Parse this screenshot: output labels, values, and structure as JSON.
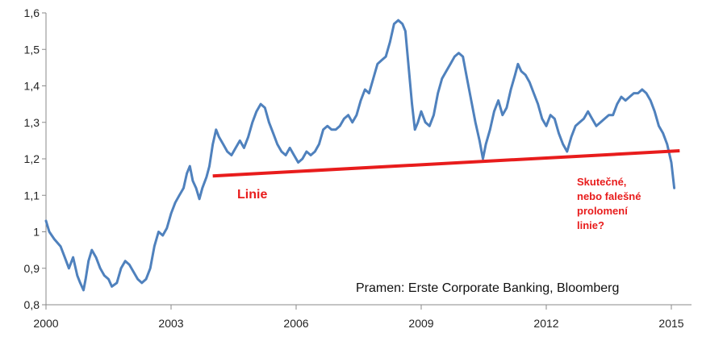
{
  "chart_data": {
    "type": "line",
    "title": "",
    "xlabel": "",
    "ylabel": "",
    "xlim": [
      2000,
      2015.2
    ],
    "ylim": [
      0.8,
      1.6
    ],
    "x_ticks": [
      2000,
      2003,
      2006,
      2009,
      2012,
      2015
    ],
    "x_tick_labels": [
      "2000",
      "2003",
      "2006",
      "2009",
      "2012",
      "2015"
    ],
    "y_ticks": [
      0.8,
      0.9,
      1.0,
      1.1,
      1.2,
      1.3,
      1.4,
      1.5,
      1.6
    ],
    "y_tick_labels": [
      "0,8",
      "0,9",
      "1",
      "1,1",
      "1,2",
      "1,3",
      "1,4",
      "1,5",
      "1,6"
    ],
    "grid": false,
    "series": [
      {
        "color": "#4f81bd",
        "points": [
          [
            2000.0,
            1.03
          ],
          [
            2000.08,
            1.0
          ],
          [
            2000.2,
            0.98
          ],
          [
            2000.35,
            0.96
          ],
          [
            2000.45,
            0.93
          ],
          [
            2000.55,
            0.9
          ],
          [
            2000.65,
            0.93
          ],
          [
            2000.75,
            0.88
          ],
          [
            2000.82,
            0.86
          ],
          [
            2000.9,
            0.84
          ],
          [
            2000.95,
            0.87
          ],
          [
            2001.02,
            0.92
          ],
          [
            2001.1,
            0.95
          ],
          [
            2001.2,
            0.93
          ],
          [
            2001.3,
            0.9
          ],
          [
            2001.4,
            0.88
          ],
          [
            2001.5,
            0.87
          ],
          [
            2001.58,
            0.85
          ],
          [
            2001.7,
            0.86
          ],
          [
            2001.8,
            0.9
          ],
          [
            2001.9,
            0.92
          ],
          [
            2002.0,
            0.91
          ],
          [
            2002.1,
            0.89
          ],
          [
            2002.2,
            0.87
          ],
          [
            2002.3,
            0.86
          ],
          [
            2002.4,
            0.87
          ],
          [
            2002.5,
            0.9
          ],
          [
            2002.6,
            0.96
          ],
          [
            2002.7,
            1.0
          ],
          [
            2002.8,
            0.99
          ],
          [
            2002.9,
            1.01
          ],
          [
            2003.0,
            1.05
          ],
          [
            2003.1,
            1.08
          ],
          [
            2003.2,
            1.1
          ],
          [
            2003.3,
            1.12
          ],
          [
            2003.38,
            1.16
          ],
          [
            2003.45,
            1.18
          ],
          [
            2003.52,
            1.14
          ],
          [
            2003.6,
            1.12
          ],
          [
            2003.68,
            1.09
          ],
          [
            2003.75,
            1.12
          ],
          [
            2003.85,
            1.15
          ],
          [
            2003.92,
            1.18
          ],
          [
            2004.0,
            1.24
          ],
          [
            2004.08,
            1.28
          ],
          [
            2004.15,
            1.26
          ],
          [
            2004.25,
            1.24
          ],
          [
            2004.35,
            1.22
          ],
          [
            2004.45,
            1.21
          ],
          [
            2004.55,
            1.23
          ],
          [
            2004.65,
            1.25
          ],
          [
            2004.75,
            1.23
          ],
          [
            2004.85,
            1.26
          ],
          [
            2004.95,
            1.3
          ],
          [
            2005.05,
            1.33
          ],
          [
            2005.15,
            1.35
          ],
          [
            2005.25,
            1.34
          ],
          [
            2005.35,
            1.3
          ],
          [
            2005.45,
            1.27
          ],
          [
            2005.55,
            1.24
          ],
          [
            2005.65,
            1.22
          ],
          [
            2005.75,
            1.21
          ],
          [
            2005.85,
            1.23
          ],
          [
            2005.95,
            1.21
          ],
          [
            2006.05,
            1.19
          ],
          [
            2006.15,
            1.2
          ],
          [
            2006.25,
            1.22
          ],
          [
            2006.35,
            1.21
          ],
          [
            2006.45,
            1.22
          ],
          [
            2006.55,
            1.24
          ],
          [
            2006.65,
            1.28
          ],
          [
            2006.75,
            1.29
          ],
          [
            2006.85,
            1.28
          ],
          [
            2006.95,
            1.28
          ],
          [
            2007.05,
            1.29
          ],
          [
            2007.15,
            1.31
          ],
          [
            2007.25,
            1.32
          ],
          [
            2007.35,
            1.3
          ],
          [
            2007.45,
            1.32
          ],
          [
            2007.55,
            1.36
          ],
          [
            2007.65,
            1.39
          ],
          [
            2007.75,
            1.38
          ],
          [
            2007.85,
            1.42
          ],
          [
            2007.95,
            1.46
          ],
          [
            2008.05,
            1.47
          ],
          [
            2008.15,
            1.48
          ],
          [
            2008.25,
            1.52
          ],
          [
            2008.35,
            1.57
          ],
          [
            2008.45,
            1.58
          ],
          [
            2008.55,
            1.57
          ],
          [
            2008.62,
            1.55
          ],
          [
            2008.7,
            1.45
          ],
          [
            2008.78,
            1.35
          ],
          [
            2008.85,
            1.28
          ],
          [
            2008.92,
            1.3
          ],
          [
            2009.0,
            1.33
          ],
          [
            2009.1,
            1.3
          ],
          [
            2009.2,
            1.29
          ],
          [
            2009.3,
            1.32
          ],
          [
            2009.4,
            1.38
          ],
          [
            2009.5,
            1.42
          ],
          [
            2009.6,
            1.44
          ],
          [
            2009.7,
            1.46
          ],
          [
            2009.8,
            1.48
          ],
          [
            2009.9,
            1.49
          ],
          [
            2010.0,
            1.48
          ],
          [
            2010.1,
            1.42
          ],
          [
            2010.2,
            1.36
          ],
          [
            2010.3,
            1.3
          ],
          [
            2010.4,
            1.25
          ],
          [
            2010.48,
            1.2
          ],
          [
            2010.55,
            1.24
          ],
          [
            2010.65,
            1.28
          ],
          [
            2010.75,
            1.33
          ],
          [
            2010.85,
            1.36
          ],
          [
            2010.95,
            1.32
          ],
          [
            2011.05,
            1.34
          ],
          [
            2011.15,
            1.39
          ],
          [
            2011.25,
            1.43
          ],
          [
            2011.32,
            1.46
          ],
          [
            2011.4,
            1.44
          ],
          [
            2011.5,
            1.43
          ],
          [
            2011.6,
            1.41
          ],
          [
            2011.7,
            1.38
          ],
          [
            2011.8,
            1.35
          ],
          [
            2011.9,
            1.31
          ],
          [
            2012.0,
            1.29
          ],
          [
            2012.1,
            1.32
          ],
          [
            2012.2,
            1.31
          ],
          [
            2012.3,
            1.27
          ],
          [
            2012.4,
            1.24
          ],
          [
            2012.5,
            1.22
          ],
          [
            2012.6,
            1.26
          ],
          [
            2012.7,
            1.29
          ],
          [
            2012.8,
            1.3
          ],
          [
            2012.9,
            1.31
          ],
          [
            2013.0,
            1.33
          ],
          [
            2013.1,
            1.31
          ],
          [
            2013.2,
            1.29
          ],
          [
            2013.3,
            1.3
          ],
          [
            2013.4,
            1.31
          ],
          [
            2013.5,
            1.32
          ],
          [
            2013.6,
            1.32
          ],
          [
            2013.7,
            1.35
          ],
          [
            2013.8,
            1.37
          ],
          [
            2013.9,
            1.36
          ],
          [
            2014.0,
            1.37
          ],
          [
            2014.1,
            1.38
          ],
          [
            2014.2,
            1.38
          ],
          [
            2014.3,
            1.39
          ],
          [
            2014.4,
            1.38
          ],
          [
            2014.5,
            1.36
          ],
          [
            2014.6,
            1.33
          ],
          [
            2014.7,
            1.29
          ],
          [
            2014.8,
            1.27
          ],
          [
            2014.9,
            1.24
          ],
          [
            2015.0,
            1.19
          ],
          [
            2015.07,
            1.12
          ]
        ]
      }
    ],
    "trendline": {
      "color": "#e81c1c",
      "label": "Linie",
      "from": [
        2004.0,
        1.153
      ],
      "to": [
        2015.2,
        1.222
      ]
    },
    "annotation": {
      "lines": [
        "Skutečné,",
        "nebo falešné",
        "prolomení",
        "linie?"
      ],
      "color": "#e81c1c"
    },
    "source": "Pramen: Erste Corporate Banking, Bloomberg"
  }
}
